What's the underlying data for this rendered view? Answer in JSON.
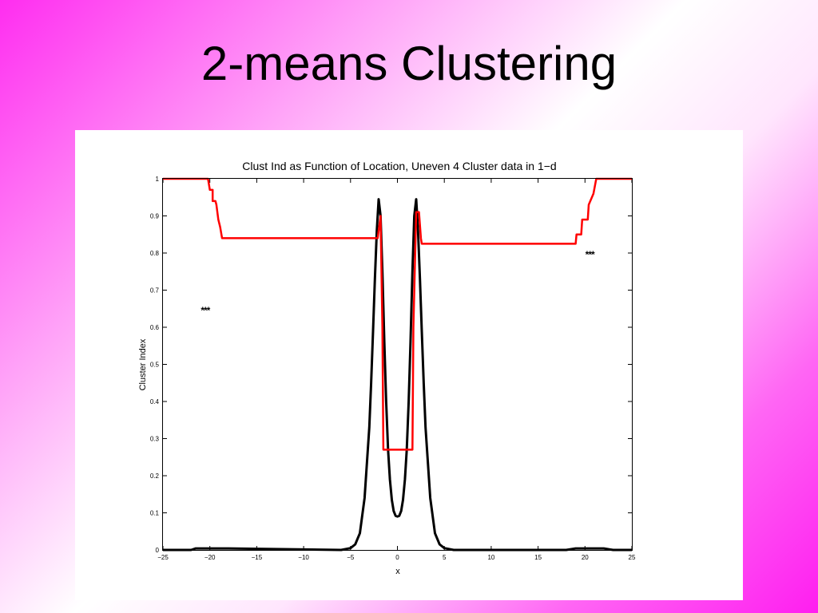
{
  "slide": {
    "title": "2-means Clustering"
  },
  "chart_data": {
    "type": "line",
    "title": "Clust Ind as Function of Location, Uneven 4 Cluster data in 1−d",
    "xlabel": "x",
    "ylabel": "Cluster Index",
    "xlim": [
      -25,
      25
    ],
    "ylim": [
      0,
      1
    ],
    "x_ticks": [
      -25,
      -20,
      -15,
      -10,
      -5,
      0,
      5,
      10,
      15,
      20,
      25
    ],
    "x_tick_labels": [
      "−25",
      "−20",
      "−15",
      "−10",
      "−5",
      "0",
      "5",
      "10",
      "15",
      "20",
      "25"
    ],
    "y_ticks": [
      0,
      0.1,
      0.2,
      0.3,
      0.4,
      0.5,
      0.6,
      0.7,
      0.8,
      0.9,
      1
    ],
    "y_tick_labels": [
      "0",
      "0.1",
      "0.2",
      "0.3",
      "0.4",
      "0.5",
      "0.6",
      "0.7",
      "0.8",
      "0.9",
      "1"
    ],
    "grid": false,
    "series": [
      {
        "color": "#000000",
        "line_width": 3,
        "x": [
          -25,
          -22,
          -21.5,
          -18,
          -6,
          -5,
          -4.5,
          -4,
          -3.5,
          -3,
          -2.8,
          -2.6,
          -2.4,
          -2.2,
          -2,
          -1.8,
          -1.6,
          -1.4,
          -1.2,
          -1,
          -0.8,
          -0.6,
          -0.4,
          -0.2,
          0,
          0.2,
          0.4,
          0.6,
          0.8,
          1,
          1.2,
          1.4,
          1.6,
          1.8,
          2,
          2.2,
          2.4,
          2.6,
          2.8,
          3,
          3.5,
          4,
          4.5,
          5,
          6,
          18,
          19,
          22,
          23,
          25
        ],
        "y": [
          0,
          0,
          0.004,
          0.004,
          0,
          0.005,
          0.015,
          0.045,
          0.14,
          0.33,
          0.45,
          0.59,
          0.73,
          0.86,
          0.945,
          0.9,
          0.75,
          0.56,
          0.4,
          0.27,
          0.19,
          0.135,
          0.105,
          0.092,
          0.09,
          0.092,
          0.105,
          0.135,
          0.19,
          0.27,
          0.4,
          0.56,
          0.75,
          0.9,
          0.945,
          0.86,
          0.73,
          0.59,
          0.45,
          0.33,
          0.14,
          0.045,
          0.015,
          0.005,
          0,
          0,
          0.004,
          0.004,
          0,
          0
        ]
      },
      {
        "color": "#ff0000",
        "line_width": 2.5,
        "x": [
          -25,
          -20.2,
          -20,
          -19.7,
          -19.7,
          -19.4,
          -19.3,
          -19.1,
          -18.9,
          -18.7,
          -2.1,
          -1.8,
          -1.6,
          -1.5,
          1.6,
          1.7,
          2,
          2.3,
          2.5,
          2.6,
          19,
          19.1,
          19.6,
          19.7,
          20.3,
          20.4,
          20.9,
          21.2,
          25
        ],
        "y": [
          1,
          1,
          0.97,
          0.97,
          0.94,
          0.94,
          0.93,
          0.89,
          0.87,
          0.84,
          0.84,
          0.9,
          0.6,
          0.27,
          0.27,
          0.6,
          0.91,
          0.91,
          0.84,
          0.825,
          0.825,
          0.85,
          0.85,
          0.89,
          0.89,
          0.93,
          0.96,
          1,
          1
        ]
      }
    ],
    "annotations": [
      {
        "text": "***",
        "x": -20.5,
        "y": 0.65
      },
      {
        "text": "***",
        "x": 20.5,
        "y": 0.8
      }
    ]
  }
}
